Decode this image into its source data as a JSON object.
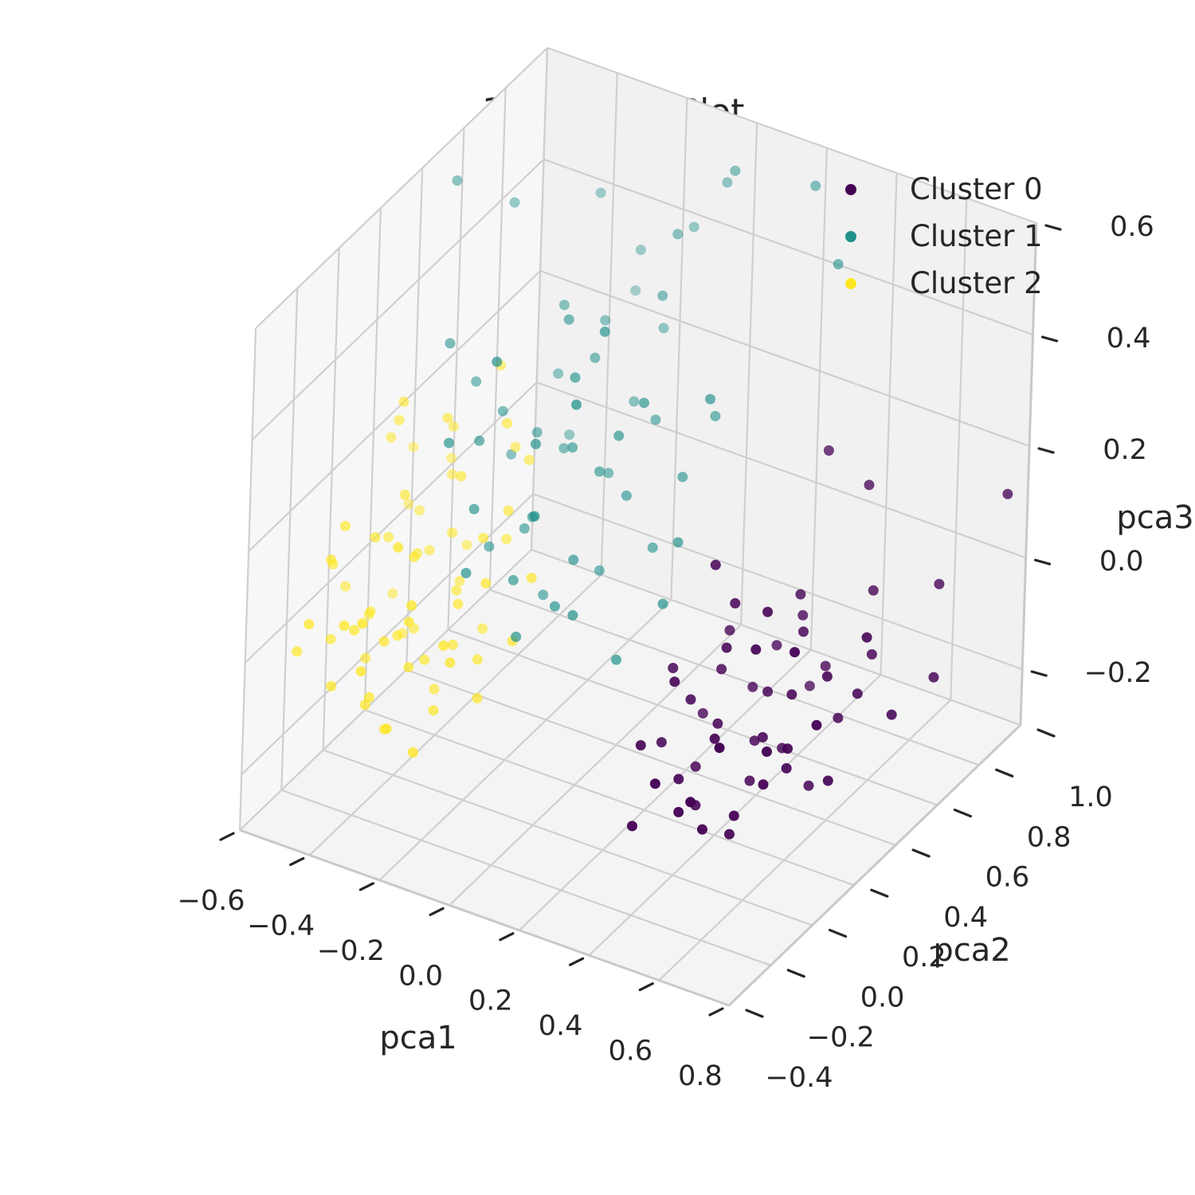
{
  "chart_data": {
    "type": "scatter",
    "projection": "3d",
    "title": "3D Cluster Plot",
    "xlabel": "pca1",
    "ylabel": "pca2",
    "zlabel": "pca3",
    "xlim": [
      -0.6,
      0.8
    ],
    "ylim": [
      -0.4,
      1.0
    ],
    "zlim": [
      -0.3,
      0.6
    ],
    "x_ticks": [
      -0.6,
      -0.4,
      -0.2,
      0.0,
      0.2,
      0.4,
      0.6,
      0.8
    ],
    "y_ticks": [
      -0.4,
      -0.2,
      0.0,
      0.2,
      0.4,
      0.6,
      0.8,
      1.0
    ],
    "z_ticks": [
      -0.2,
      0.0,
      0.2,
      0.4,
      0.6
    ],
    "x_tick_labels": [
      "−0.6",
      "−0.4",
      "−0.2",
      "0.0",
      "0.2",
      "0.4",
      "0.6",
      "0.8"
    ],
    "y_tick_labels": [
      "−0.4",
      "−0.2",
      "0.0",
      "0.2",
      "0.4",
      "0.6",
      "0.8",
      "1.0"
    ],
    "z_tick_labels": [
      "−0.2",
      "0.0",
      "0.2",
      "0.4",
      "0.6"
    ],
    "grid": true,
    "legend": "top-right",
    "series": [
      {
        "name": "Cluster 0",
        "color": "#440154",
        "points": [
          [
            0.35,
            0.15,
            -0.05
          ],
          [
            0.4,
            0.2,
            -0.1
          ],
          [
            0.45,
            0.1,
            -0.08
          ],
          [
            0.5,
            0.25,
            -0.12
          ],
          [
            0.38,
            0.05,
            -0.15
          ],
          [
            0.55,
            0.3,
            -0.05
          ],
          [
            0.42,
            0.35,
            -0.18
          ],
          [
            0.3,
            0.1,
            -0.12
          ],
          [
            0.6,
            0.2,
            -0.1
          ],
          [
            0.48,
            0.0,
            -0.2
          ],
          [
            0.52,
            0.4,
            0.02
          ],
          [
            0.36,
            0.28,
            -0.04
          ],
          [
            0.44,
            -0.05,
            -0.16
          ],
          [
            0.58,
            0.12,
            -0.14
          ],
          [
            0.33,
            0.22,
            -0.2
          ],
          [
            0.47,
            0.32,
            -0.07
          ],
          [
            0.62,
            0.35,
            -0.02
          ],
          [
            0.4,
            -0.1,
            -0.1
          ],
          [
            0.54,
            0.05,
            -0.18
          ],
          [
            0.28,
            0.18,
            -0.02
          ],
          [
            0.65,
            0.45,
            -0.08
          ],
          [
            0.46,
            0.5,
            0.0
          ],
          [
            0.39,
            0.12,
            -0.22
          ],
          [
            0.57,
            0.25,
            -0.16
          ],
          [
            0.5,
            0.55,
            -0.1
          ],
          [
            0.7,
            0.4,
            0.05
          ],
          [
            0.43,
            0.18,
            0.05
          ],
          [
            0.31,
            -0.02,
            -0.08
          ],
          [
            0.61,
            0.08,
            -0.06
          ],
          [
            0.37,
            0.42,
            -0.12
          ],
          [
            0.53,
            0.15,
            0.08
          ],
          [
            0.45,
            0.28,
            -0.22
          ],
          [
            0.66,
            0.3,
            -0.18
          ],
          [
            0.34,
            0.35,
            0.0
          ],
          [
            0.58,
            0.48,
            -0.15
          ],
          [
            0.49,
            -0.08,
            -0.12
          ],
          [
            0.41,
            0.25,
            0.1
          ],
          [
            0.63,
            0.55,
            -0.05
          ],
          [
            0.55,
            -0.05,
            -0.02
          ],
          [
            0.47,
            0.4,
            -0.2
          ],
          [
            0.36,
            0.05,
            0.02
          ],
          [
            0.72,
            0.5,
            -0.12
          ],
          [
            0.52,
            0.22,
            0.12
          ],
          [
            0.44,
            0.58,
            -0.16
          ],
          [
            0.68,
            0.2,
            -0.04
          ],
          [
            0.3,
            0.3,
            -0.14
          ],
          [
            0.6,
            0.6,
            0.04
          ],
          [
            0.5,
            0.1,
            -0.24
          ],
          [
            0.4,
            0.48,
            -0.06
          ],
          [
            0.56,
            0.38,
            -0.24
          ],
          [
            0.75,
            0.65,
            -0.1
          ],
          [
            0.35,
            -0.12,
            -0.18
          ],
          [
            0.64,
            0.15,
            0.1
          ],
          [
            0.48,
            0.45,
            0.06
          ],
          [
            0.38,
            0.2,
            0.18
          ],
          [
            0.7,
            0.75,
            0.02
          ],
          [
            0.8,
            0.9,
            0.15
          ],
          [
            0.55,
            0.65,
            0.2
          ],
          [
            0.45,
            0.62,
            0.25
          ]
        ]
      },
      {
        "name": "Cluster 1",
        "color": "#21918c",
        "points": [
          [
            -0.2,
            0.3,
            0.1
          ],
          [
            -0.15,
            0.4,
            0.2
          ],
          [
            -0.25,
            0.35,
            0.05
          ],
          [
            -0.1,
            0.45,
            0.15
          ],
          [
            -0.3,
            0.2,
            0.25
          ],
          [
            -0.05,
            0.5,
            0.1
          ],
          [
            -0.18,
            0.55,
            0.3
          ],
          [
            -0.22,
            0.25,
            0.0
          ],
          [
            -0.12,
            0.35,
            0.35
          ],
          [
            -0.28,
            0.45,
            0.18
          ],
          [
            -0.08,
            0.3,
            0.05
          ],
          [
            -0.35,
            0.4,
            0.22
          ],
          [
            -0.16,
            0.6,
            0.08
          ],
          [
            -0.02,
            0.4,
            0.25
          ],
          [
            -0.26,
            0.55,
            0.12
          ],
          [
            -0.14,
            0.2,
            0.28
          ],
          [
            -0.32,
            0.3,
            0.02
          ],
          [
            -0.06,
            0.65,
            0.18
          ],
          [
            -0.2,
            0.45,
            0.4
          ],
          [
            -0.38,
            0.5,
            0.1
          ],
          [
            0.0,
            0.55,
            0.0
          ],
          [
            -0.24,
            0.7,
            0.3
          ],
          [
            -0.1,
            0.25,
            -0.02
          ],
          [
            -0.3,
            0.6,
            0.35
          ],
          [
            -0.04,
            0.35,
            0.45
          ],
          [
            -0.18,
            0.75,
            0.15
          ],
          [
            -0.4,
            0.35,
            0.28
          ],
          [
            -0.12,
            0.5,
            -0.05
          ],
          [
            -0.34,
            0.65,
            0.2
          ],
          [
            0.02,
            0.45,
            0.3
          ],
          [
            -0.22,
            0.4,
            -0.08
          ],
          [
            -0.08,
            0.7,
            0.38
          ],
          [
            -0.28,
            0.15,
            0.15
          ],
          [
            -0.16,
            0.85,
            0.25
          ],
          [
            0.05,
            0.6,
            0.12
          ],
          [
            -0.36,
            0.75,
            0.05
          ],
          [
            -0.1,
            0.8,
            0.45
          ],
          [
            -0.26,
            0.9,
            0.35
          ],
          [
            0.08,
            0.7,
            0.2
          ],
          [
            -0.42,
            0.25,
            0.38
          ],
          [
            -0.45,
            0.6,
            0.5
          ],
          [
            -0.05,
            0.95,
            0.5
          ],
          [
            -0.2,
            0.1,
            0.45
          ],
          [
            0.1,
            0.5,
            0.05
          ],
          [
            -0.3,
            0.05,
            0.3
          ],
          [
            -0.15,
            0.15,
            -0.05
          ],
          [
            -0.02,
            0.2,
            0.0
          ],
          [
            0.05,
            0.3,
            -0.1
          ],
          [
            -0.24,
            0.05,
            0.08
          ],
          [
            0.12,
            0.4,
            -0.02
          ],
          [
            -0.5,
            0.4,
            0.6
          ],
          [
            -0.08,
            0.1,
            0.2
          ],
          [
            0.0,
            0.15,
            0.4
          ],
          [
            0.15,
            0.55,
            0.3
          ],
          [
            -0.35,
            0.85,
            0.45
          ],
          [
            0.2,
            0.95,
            0.55
          ],
          [
            0.3,
            0.9,
            0.45
          ],
          [
            0.0,
            0.9,
            0.55
          ],
          [
            -0.14,
            0.95,
            0.4
          ],
          [
            -0.3,
            0.95,
            0.25
          ]
        ]
      },
      {
        "name": "Cluster 2",
        "color": "#fde725",
        "points": [
          [
            -0.4,
            0.0,
            -0.05
          ],
          [
            -0.35,
            0.05,
            -0.1
          ],
          [
            -0.45,
            -0.05,
            0.0
          ],
          [
            -0.3,
            0.1,
            -0.08
          ],
          [
            -0.5,
            0.02,
            -0.12
          ],
          [
            -0.38,
            -0.1,
            -0.02
          ],
          [
            -0.42,
            0.12,
            0.05
          ],
          [
            -0.28,
            -0.02,
            -0.15
          ],
          [
            -0.48,
            0.08,
            0.08
          ],
          [
            -0.32,
            -0.08,
            -0.06
          ],
          [
            -0.44,
            0.15,
            -0.1
          ],
          [
            -0.36,
            0.0,
            0.1
          ],
          [
            -0.52,
            -0.12,
            -0.04
          ],
          [
            -0.26,
            0.05,
            0.02
          ],
          [
            -0.4,
            -0.15,
            -0.12
          ],
          [
            -0.34,
            0.18,
            -0.02
          ],
          [
            -0.46,
            -0.02,
            0.12
          ],
          [
            -0.3,
            -0.12,
            0.04
          ],
          [
            -0.54,
            0.1,
            -0.08
          ],
          [
            -0.24,
            0.12,
            -0.1
          ],
          [
            -0.38,
            0.22,
            0.06
          ],
          [
            -0.42,
            -0.18,
            0.02
          ],
          [
            -0.5,
            0.2,
            -0.14
          ],
          [
            -0.28,
            0.2,
            0.08
          ],
          [
            -0.56,
            -0.05,
            0.06
          ],
          [
            -0.22,
            -0.05,
            -0.04
          ],
          [
            -0.36,
            -0.2,
            -0.08
          ],
          [
            -0.46,
            0.25,
            0.0
          ],
          [
            -0.32,
            0.28,
            -0.12
          ],
          [
            -0.58,
            0.05,
            -0.02
          ],
          [
            -0.2,
            0.08,
            0.06
          ],
          [
            -0.44,
            -0.25,
            -0.06
          ],
          [
            -0.52,
            0.3,
            0.04
          ],
          [
            -0.26,
            -0.18,
            0.1
          ],
          [
            -0.4,
            0.3,
            -0.06
          ],
          [
            -0.34,
            -0.28,
            0.0
          ],
          [
            -0.48,
            -0.2,
            0.14
          ],
          [
            -0.3,
            0.35,
            0.02
          ],
          [
            -0.56,
            0.25,
            -0.1
          ],
          [
            -0.18,
            0.02,
            -0.12
          ],
          [
            -0.42,
            0.05,
            0.18
          ],
          [
            -0.36,
            0.12,
            -0.18
          ],
          [
            -0.5,
            -0.1,
            0.16
          ],
          [
            -0.28,
            -0.25,
            -0.1
          ],
          [
            -0.24,
            0.25,
            0.12
          ],
          [
            -0.46,
            0.35,
            0.1
          ],
          [
            -0.38,
            -0.3,
            0.08
          ],
          [
            -0.54,
            -0.25,
            -0.02
          ],
          [
            -0.32,
            0.15,
            0.2
          ],
          [
            -0.2,
            -0.12,
            0.02
          ],
          [
            -0.44,
            0.4,
            -0.04
          ],
          [
            -0.4,
            -0.05,
            -0.2
          ],
          [
            -0.26,
            0.38,
            0.16
          ],
          [
            -0.58,
            0.35,
            0.02
          ],
          [
            -0.16,
            0.15,
            -0.06
          ],
          [
            -0.48,
            -0.3,
            0.06
          ],
          [
            -0.34,
            0.45,
            0.14
          ],
          [
            -0.22,
            -0.22,
            -0.14
          ],
          [
            -0.52,
            0.45,
            0.08
          ],
          [
            -0.3,
            -0.35,
            0.12
          ],
          [
            -0.14,
            0.2,
            0.04
          ],
          [
            -0.6,
            0.4,
            0.1
          ],
          [
            -0.38,
            0.18,
            0.28
          ],
          [
            -0.46,
            0.1,
            0.32
          ],
          [
            -0.42,
            0.28,
            0.22
          ],
          [
            -0.28,
            0.3,
            0.25
          ],
          [
            -0.5,
            0.15,
            0.26
          ],
          [
            -0.36,
            0.4,
            0.3
          ],
          [
            -0.55,
            0.2,
            0.2
          ],
          [
            -0.32,
            -0.15,
            0.18
          ]
        ]
      }
    ]
  }
}
